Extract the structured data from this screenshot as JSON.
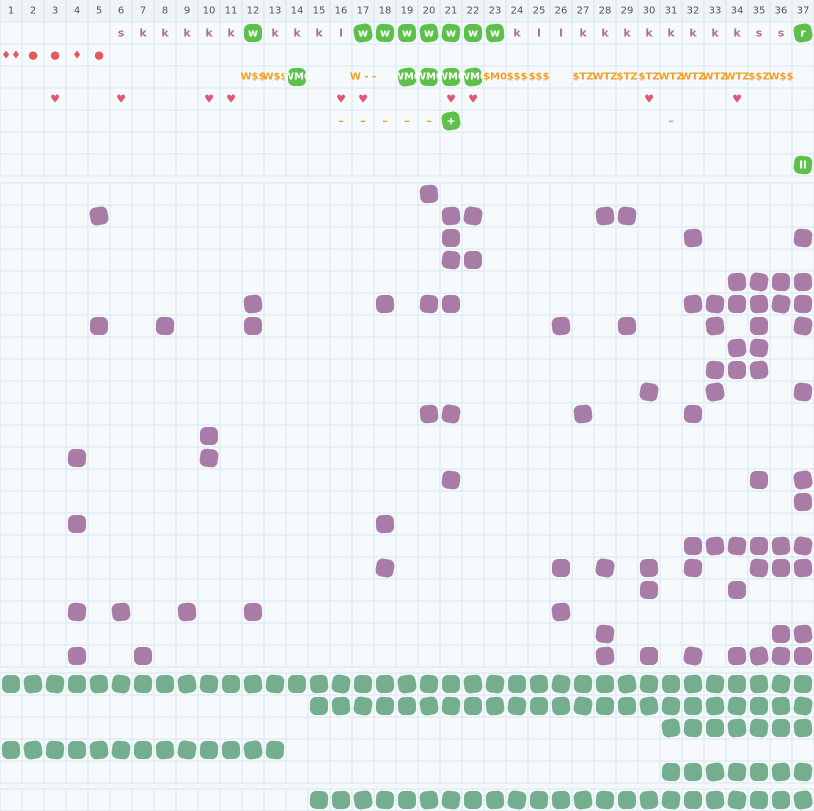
{
  "columns": [
    1,
    2,
    3,
    4,
    5,
    6,
    7,
    8,
    9,
    10,
    11,
    12,
    13,
    14,
    15,
    16,
    17,
    18,
    19,
    20,
    21,
    22,
    23,
    24,
    25,
    26,
    27,
    28,
    29,
    30,
    31,
    32,
    33,
    34,
    35,
    36,
    37
  ],
  "top_rows": [
    {
      "color": "#b0709a",
      "cells": [
        {
          "col": 6,
          "text": "s"
        },
        {
          "col": 7,
          "text": "k"
        },
        {
          "col": 8,
          "text": "k"
        },
        {
          "col": 9,
          "text": "k"
        },
        {
          "col": 10,
          "text": "k"
        },
        {
          "col": 11,
          "text": "k"
        },
        {
          "col": 12,
          "text": "w",
          "badge": true
        },
        {
          "col": 13,
          "text": "k"
        },
        {
          "col": 14,
          "text": "k"
        },
        {
          "col": 15,
          "text": "k"
        },
        {
          "col": 16,
          "text": "l"
        },
        {
          "col": 17,
          "text": "w",
          "badge": true
        },
        {
          "col": 18,
          "text": "w",
          "badge": true
        },
        {
          "col": 19,
          "text": "w",
          "badge": true
        },
        {
          "col": 20,
          "text": "w",
          "badge": true
        },
        {
          "col": 21,
          "text": "w",
          "badge": true
        },
        {
          "col": 22,
          "text": "w",
          "badge": true
        },
        {
          "col": 23,
          "text": "w",
          "badge": true
        },
        {
          "col": 24,
          "text": "k"
        },
        {
          "col": 25,
          "text": "l"
        },
        {
          "col": 26,
          "text": "l"
        },
        {
          "col": 27,
          "text": "k"
        },
        {
          "col": 28,
          "text": "k"
        },
        {
          "col": 29,
          "text": "k"
        },
        {
          "col": 30,
          "text": "k"
        },
        {
          "col": 31,
          "text": "k"
        },
        {
          "col": 32,
          "text": "k"
        },
        {
          "col": 33,
          "text": "k"
        },
        {
          "col": 34,
          "text": "k"
        },
        {
          "col": 35,
          "text": "s"
        },
        {
          "col": 36,
          "text": "s"
        },
        {
          "col": 37,
          "text": "r",
          "badge": true
        }
      ]
    },
    {
      "color": "#e45a5a",
      "cells": [
        {
          "col": 1,
          "text": "♦♦"
        },
        {
          "col": 2,
          "text": "●"
        },
        {
          "col": 3,
          "text": "●"
        },
        {
          "col": 4,
          "text": "♦"
        },
        {
          "col": 5,
          "text": "●"
        }
      ]
    },
    {
      "color": "#f0a028",
      "cells": [
        {
          "col": 12,
          "text": "W$$"
        },
        {
          "col": 13,
          "text": "W$$"
        },
        {
          "col": 14,
          "text": "WM0",
          "badge": true
        },
        {
          "col": 17,
          "text": "W - -"
        },
        {
          "col": 19,
          "text": "WM0",
          "badge": true
        },
        {
          "col": 20,
          "text": "WM0",
          "badge": true
        },
        {
          "col": 21,
          "text": "WM0",
          "badge": true
        },
        {
          "col": 22,
          "text": "WM0",
          "badge": true
        },
        {
          "col": 23,
          "text": "$M0"
        },
        {
          "col": 24,
          "text": "$$$"
        },
        {
          "col": 25,
          "text": "$$$"
        },
        {
          "col": 27,
          "text": "$TZ"
        },
        {
          "col": 28,
          "text": "WTZ"
        },
        {
          "col": 29,
          "text": "$TZ"
        },
        {
          "col": 30,
          "text": "$TZ"
        },
        {
          "col": 31,
          "text": "WTZ"
        },
        {
          "col": 32,
          "text": "WTZ"
        },
        {
          "col": 33,
          "text": "WTZ"
        },
        {
          "col": 34,
          "text": "WTZ"
        },
        {
          "col": 35,
          "text": "$$Z"
        },
        {
          "col": 36,
          "text": "W$$"
        }
      ]
    },
    {
      "color": "#e05878",
      "cells": [
        {
          "col": 3,
          "text": "♥"
        },
        {
          "col": 6,
          "text": "♥"
        },
        {
          "col": 10,
          "text": "♥"
        },
        {
          "col": 11,
          "text": "♥"
        },
        {
          "col": 16,
          "text": "♥"
        },
        {
          "col": 17,
          "text": "♥"
        },
        {
          "col": 21,
          "text": "♥"
        },
        {
          "col": 22,
          "text": "♥"
        },
        {
          "col": 30,
          "text": "♥"
        },
        {
          "col": 34,
          "text": "♥"
        }
      ]
    },
    {
      "color": "#f0a028",
      "cells": [
        {
          "col": 16,
          "text": "–"
        },
        {
          "col": 17,
          "text": "–"
        },
        {
          "col": 18,
          "text": "–"
        },
        {
          "col": 19,
          "text": "–"
        },
        {
          "col": 20,
          "text": "–"
        },
        {
          "col": 21,
          "text": "+",
          "badge": true
        },
        {
          "col": 31,
          "text": "–"
        }
      ]
    },
    {
      "color": "#f0a028",
      "cells": []
    },
    {
      "color": "#ffffff",
      "cells": [
        {
          "col": 37,
          "text": "ll",
          "badge": true
        }
      ]
    }
  ],
  "purple_rows": [
    [
      20
    ],
    [
      5,
      21,
      22,
      28,
      29
    ],
    [
      21,
      32,
      37
    ],
    [
      21,
      22
    ],
    [
      34,
      35,
      36,
      37
    ],
    [
      12,
      18,
      20,
      21,
      32,
      33,
      34,
      35,
      36,
      37
    ],
    [
      5,
      8,
      12,
      26,
      29,
      33,
      35,
      37
    ],
    [
      34,
      35
    ],
    [
      33,
      34,
      35
    ],
    [
      30,
      33,
      37
    ],
    [
      20,
      21,
      27,
      32
    ],
    [
      10
    ],
    [
      4,
      10
    ],
    [
      21,
      35,
      37
    ],
    [
      37
    ],
    [
      4,
      18
    ],
    [
      32,
      33,
      34,
      35,
      36,
      37
    ],
    [
      18,
      26,
      28,
      30,
      32,
      35,
      36,
      37
    ],
    [
      30,
      34
    ],
    [
      4,
      6,
      9,
      12,
      26
    ],
    [
      28,
      36,
      37
    ],
    [
      4,
      7,
      28,
      30,
      32,
      34,
      35,
      36,
      37
    ]
  ],
  "green_rows": [
    [
      1,
      2,
      3,
      4,
      5,
      6,
      7,
      8,
      9,
      10,
      11,
      12,
      13,
      14,
      15,
      16,
      17,
      18,
      19,
      20,
      21,
      22,
      23,
      24,
      25,
      26,
      27,
      28,
      29,
      30,
      31,
      32,
      33,
      34,
      35,
      36,
      37
    ],
    [
      15,
      16,
      17,
      18,
      19,
      20,
      21,
      22,
      23,
      24,
      25,
      26,
      27,
      28,
      29,
      30,
      31,
      32,
      33,
      34,
      35,
      36,
      37
    ],
    [
      31,
      32,
      33,
      34,
      35,
      36,
      37
    ],
    [
      1,
      2,
      3,
      4,
      5,
      6,
      7,
      8,
      9,
      10,
      11,
      12,
      13
    ],
    [
      31,
      32,
      33,
      34,
      35,
      36,
      37
    ]
  ],
  "bottom_rows": [
    [
      15,
      16,
      17,
      18,
      19,
      20,
      21,
      22,
      23,
      24,
      25,
      26,
      27,
      28,
      29,
      30,
      31,
      32,
      33,
      34,
      35,
      36,
      37
    ]
  ]
}
